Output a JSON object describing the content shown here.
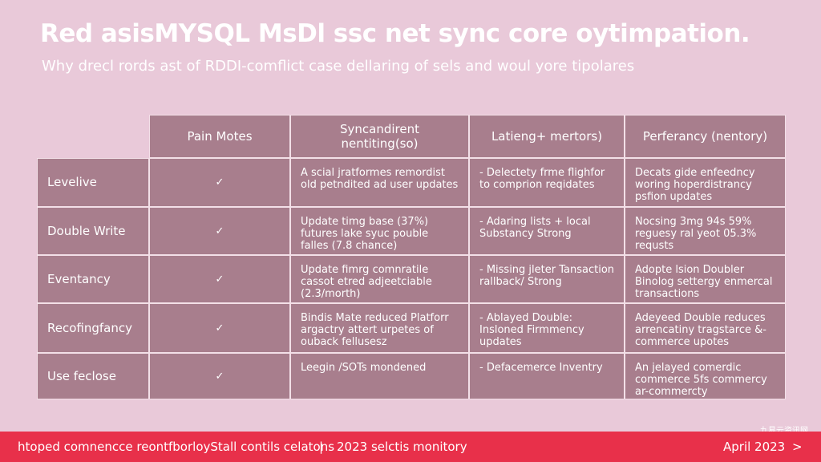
{
  "header": {
    "title": "Red asisMYSQL MsDl ssc net sync core oytimpation.",
    "subtitle": "Why drecl rords ast of RDDI-comflict case dellaring of sels and woul yore tipolares"
  },
  "table": {
    "columns": [
      "Pain Motes",
      "Syncandirent nentiting(so)",
      "Latieng+ mertors)",
      "Perferancy (nentory)"
    ],
    "rows": [
      [
        "Levelive",
        "✓",
        "A scial jratformes remordist old petndited ad user updates",
        "- Delectety frme flighfor to comprion reqidates",
        "Decats gide enfeedncy woring hoperdistrancy psfion updates"
      ],
      [
        "Double Write",
        "✓",
        "Update timg base (37%) futures lake syuc pouble falles (7.8 chance)",
        "- Adaring lists + local Substancy Strong",
        "Nocsing 3mg 94s 59% reguesy ral yeot 05.3% requsts"
      ],
      [
        "Eventancy",
        "✓",
        "Update fimrg comnratile cassot etred adjeetciable (2.3/morth)",
        "- Missing jleter Tansaction rallback/ Strong",
        "Adopte lsion Doubler Binolog settergy enmercal transactions"
      ],
      [
        "Recofingfancy",
        "✓",
        "Bindis Mate reduced Platforr argactry attert urpetes of ouback fellusesz",
        "- Ablayed Double: Insloned Firmmency updates",
        "Adeyeed Double reduces arrencatiny tragstarce &-commerce upotes"
      ],
      [
        "Use feclose",
        "✓",
        "Leegin /SOTs mondened",
        "- Defacemerce Inventry",
        "An jelayed comerdic commerce 5fs commercy ar-commercty"
      ]
    ]
  },
  "footer": {
    "left": "htoped comnencce reontfborloyStall contils celatons",
    "separator": "|",
    "middle": "2023 selctis monitory",
    "right": "April 2023",
    "arrow": ">",
    "watermark": "九易云资讯网"
  }
}
